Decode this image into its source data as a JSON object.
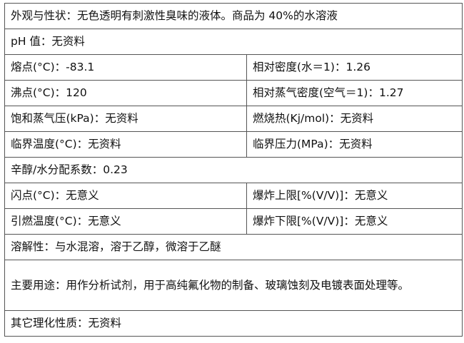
{
  "rows": [
    {
      "full": "外观与性状：无色透明有刺激性臭味的液体。商品为 40%的水溶液"
    },
    {
      "full": "pH 值：无资料"
    },
    {
      "left": "熔点(°C)：-83.1",
      "right": "相对密度(水＝1)：1.26"
    },
    {
      "left": "沸点(°C)：120",
      "right": "相对蒸气密度(空气＝1)：1.27"
    },
    {
      "left": "饱和蒸气压(kPa)：无资料",
      "right": "燃烧热(Kj/mol)：无资料"
    },
    {
      "left": "临界温度(°C)：无资料",
      "right": "临界压力(MPa)：无资料"
    },
    {
      "full": "辛醇/水分配系数：0.23"
    },
    {
      "left": "闪点(°C)：无意义",
      "right": "爆炸上限[%(V/V)]：无意义"
    },
    {
      "left": "引燃温度(°C)：无意义",
      "right": "爆炸下限[%(V/V)]：无意义"
    },
    {
      "full": "溶解性：与水混溶，溶于乙醇，微溶于乙醚"
    },
    {
      "full": "主要用途：用作分析试剂，用于高纯氟化物的制备、玻璃蚀刻及电镀表面处理等。"
    },
    {
      "full": "其它理化性质：无资料"
    }
  ]
}
